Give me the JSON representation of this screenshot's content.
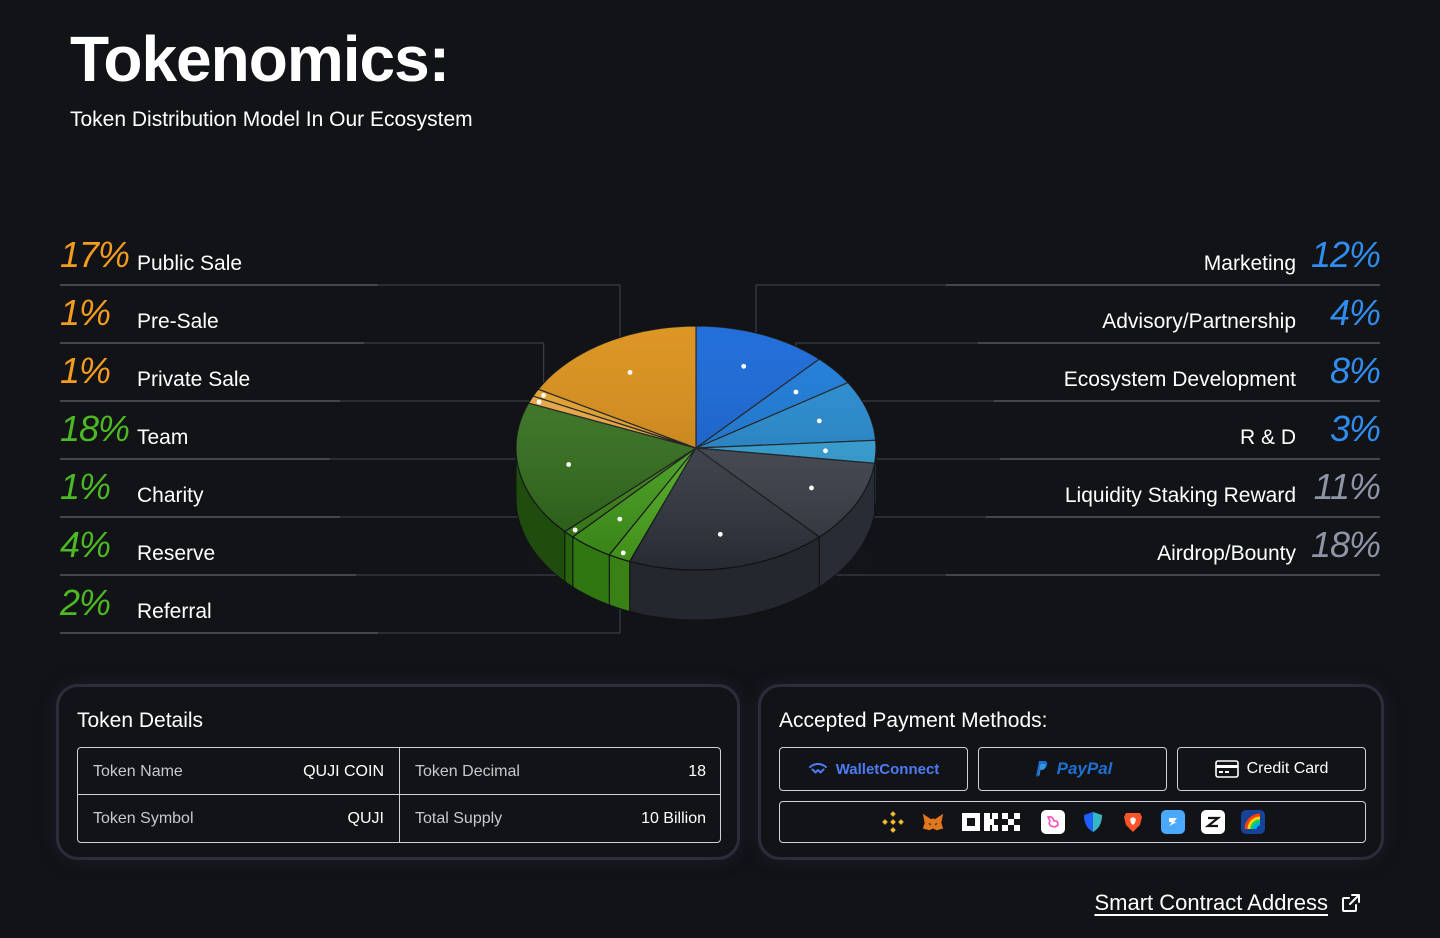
{
  "header": {
    "title": "Tokenomics:",
    "subtitle": "Token Distribution Model In Our Ecosystem"
  },
  "chart_data": {
    "type": "pie",
    "title": "",
    "slices": [
      {
        "label": "Public Sale",
        "value": 17,
        "pct_label": "17%",
        "color": "#d98a0c",
        "side": "left"
      },
      {
        "label": "Pre-Sale",
        "value": 1,
        "pct_label": "1%",
        "color": "#e8a020",
        "side": "left"
      },
      {
        "label": "Private Sale",
        "value": 1,
        "pct_label": "1%",
        "color": "#f0a83a",
        "side": "left"
      },
      {
        "label": "Team",
        "value": 18,
        "pct_label": "18%",
        "color": "#2d6e14",
        "side": "left"
      },
      {
        "label": "Charity",
        "value": 1,
        "pct_label": "1%",
        "color": "#3a8c12",
        "side": "left"
      },
      {
        "label": "Reserve",
        "value": 4,
        "pct_label": "4%",
        "color": "#45a818",
        "side": "left"
      },
      {
        "label": "Referral",
        "value": 2,
        "pct_label": "2%",
        "color": "#52b81e",
        "side": "left"
      },
      {
        "label": "Marketing",
        "value": 12,
        "pct_label": "12%",
        "color": "#0a5fd6",
        "side": "right"
      },
      {
        "label": "Advisory/Partnership",
        "value": 4,
        "pct_label": "4%",
        "color": "#0d74d8",
        "side": "right"
      },
      {
        "label": "Ecosystem Development",
        "value": 8,
        "pct_label": "8%",
        "color": "#1a86d0",
        "side": "right"
      },
      {
        "label": "R & D",
        "value": 3,
        "pct_label": "3%",
        "color": "#2aa0dc",
        "side": "right"
      },
      {
        "label": "Liquidity Staking Reward",
        "value": 11,
        "pct_label": "11%",
        "color": "#3a3f4a",
        "side": "right"
      },
      {
        "label": "Airdrop/Bounty",
        "value": 18,
        "pct_label": "18%",
        "color": "#333842",
        "side": "right"
      }
    ],
    "legend_left_color_groups": {
      "orange": "#f39c1f",
      "green": "#4cb824"
    },
    "legend_right_color_groups": {
      "blue": "#2f8df0",
      "gray": "#8e94a6"
    },
    "legend": "left-and-right"
  },
  "token_details": {
    "title": "Token Details",
    "rows": [
      [
        {
          "key": "Token Name",
          "value": "QUJI COIN"
        },
        {
          "key": "Token Decimal",
          "value": "18"
        }
      ],
      [
        {
          "key": "Token Symbol",
          "value": "QUJI"
        },
        {
          "key": "Total Supply",
          "value": "10 Billion"
        }
      ]
    ]
  },
  "payments": {
    "title": "Accepted Payment Methods:",
    "buttons": [
      {
        "label": "WalletConnect",
        "icon": "walletconnect-icon",
        "color": "#4b7cf6"
      },
      {
        "label": "PayPal",
        "icon": "paypal-icon",
        "color": "#1f6fd0"
      },
      {
        "label": "Credit Card",
        "icon": "credit-card-icon",
        "color": "#ffffff"
      }
    ],
    "wallets": [
      {
        "name": "binance-icon",
        "color": "#f3ba2f"
      },
      {
        "name": "metamask-icon",
        "color": "#e2761b"
      },
      {
        "name": "okx-icon",
        "color": "#ffffff"
      },
      {
        "name": "uniswap-icon",
        "color": "#ff4fbf"
      },
      {
        "name": "trust-wallet-icon",
        "color": "#1e5fff"
      },
      {
        "name": "brave-icon",
        "color": "#fb542b"
      },
      {
        "name": "safepal-icon",
        "color": "#4aa8ff"
      },
      {
        "name": "zengo-icon",
        "color": "#ffffff"
      },
      {
        "name": "rainbow-icon",
        "color": "#174299"
      }
    ]
  },
  "footer": {
    "contract_link": "Smart Contract Address",
    "contract_icon": "external-link-icon"
  }
}
